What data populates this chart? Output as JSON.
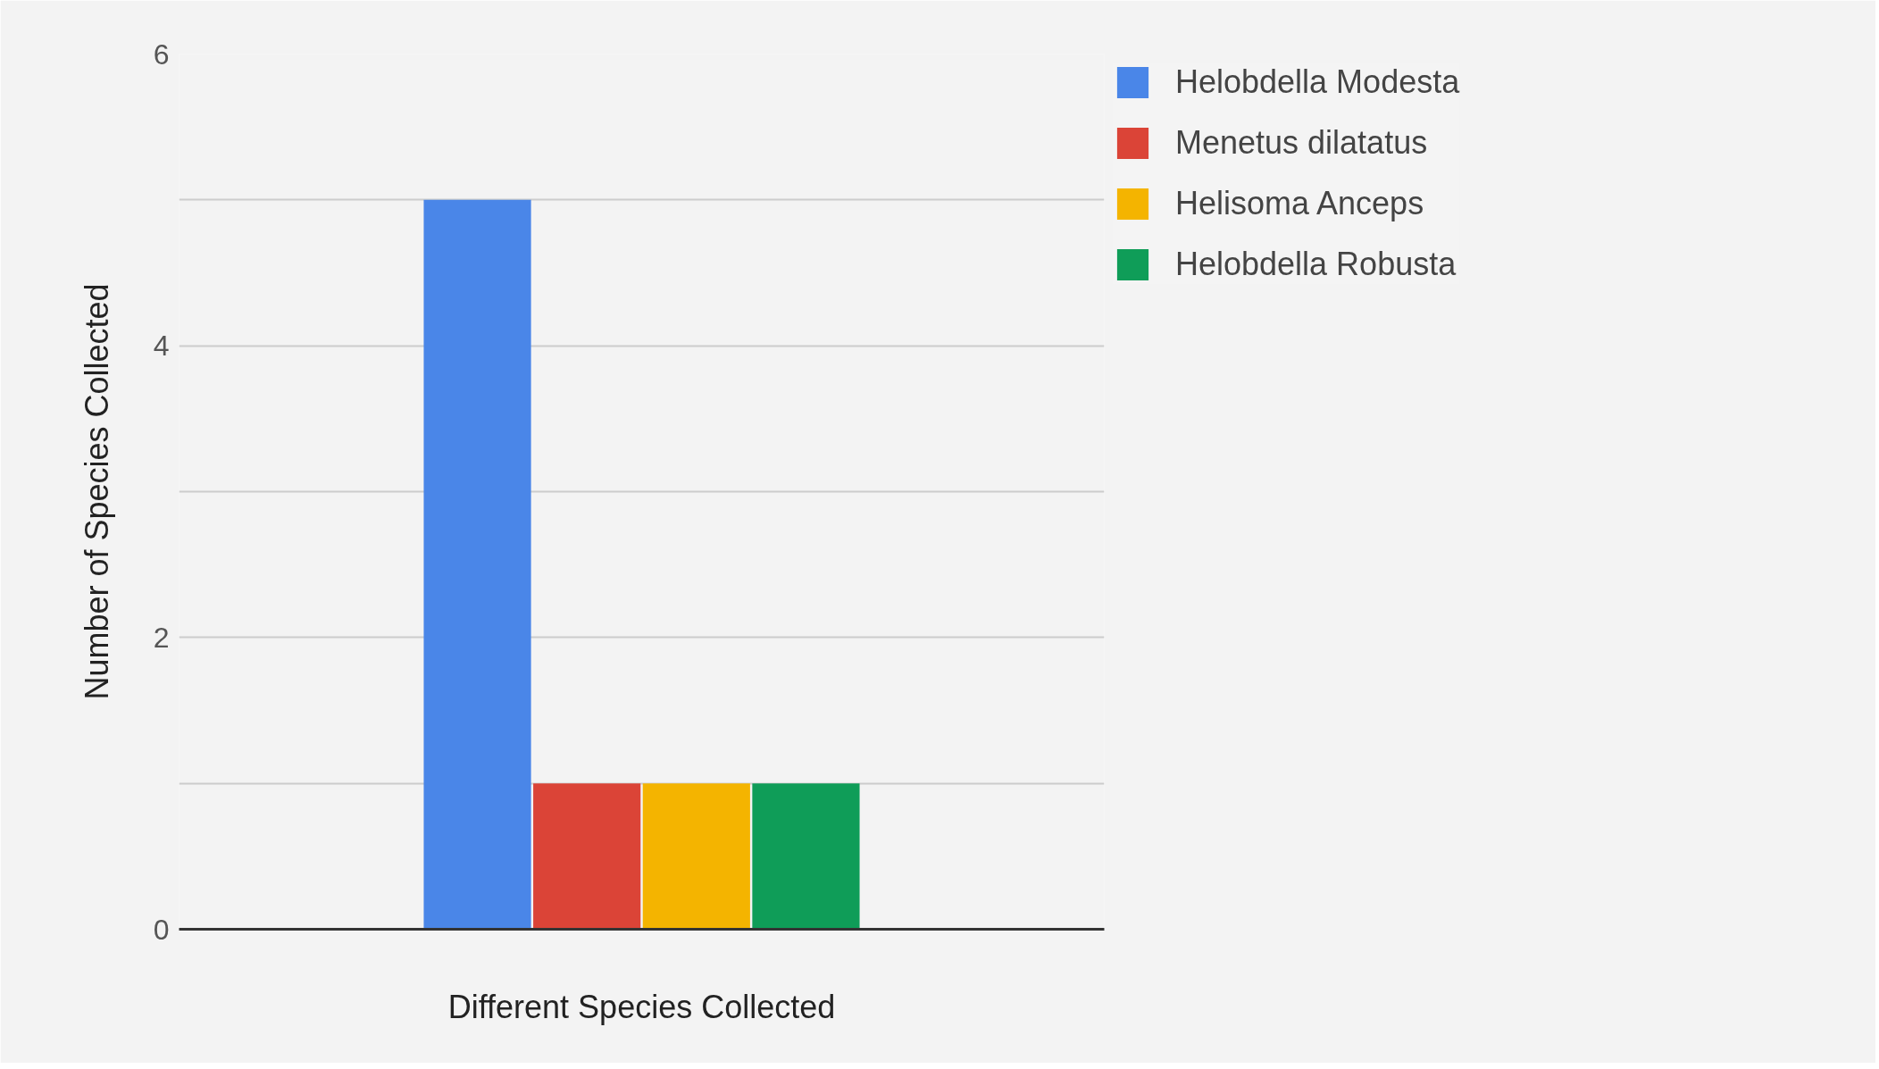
{
  "chart_data": {
    "type": "bar",
    "xlabel": "Different Species Collected",
    "ylabel": "Number of Species Collected",
    "categories": [
      null
    ],
    "series": [
      {
        "name": "Helobdella Modesta",
        "color": "#4a86e8",
        "values": [
          5
        ]
      },
      {
        "name": "Menetus dilatatus",
        "color": "#db4437",
        "values": [
          1
        ]
      },
      {
        "name": "Helisoma Anceps",
        "color": "#f4b400",
        "values": [
          1
        ]
      },
      {
        "name": "Helobdella Robusta",
        "color": "#0f9d58",
        "values": [
          1
        ]
      }
    ],
    "ylim": [
      0,
      6
    ],
    "yticks": [
      0,
      {
        "value": 1,
        "label": null
      },
      2,
      {
        "value": 3,
        "label": null
      },
      4,
      {
        "value": 5,
        "label": null
      },
      6
    ],
    "grid": "y",
    "legend": "top right"
  }
}
